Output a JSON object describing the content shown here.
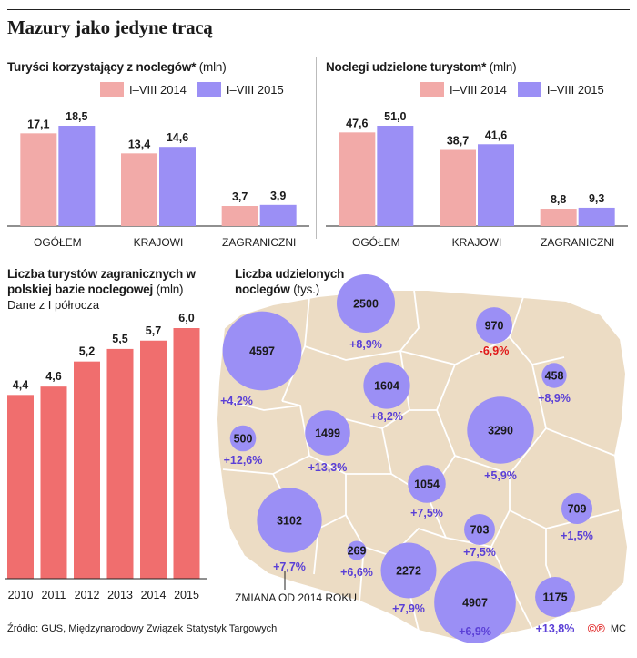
{
  "headline": "Mazury jako jedyne tracą",
  "colors": {
    "c2014": "#f2aaa8",
    "c2015": "#9b8ff5",
    "bar": "#f06e6e",
    "map": "#ecdcc4",
    "mapLine": "#ffffff",
    "bubble": "#9b8ff5",
    "pos": "#5a3fd6",
    "neg": "#e01818"
  },
  "chart_data": [
    {
      "type": "bar",
      "title": "Turyści korzystający z noclegów*",
      "unit": "(mln)",
      "categories": [
        "OGÓŁEM",
        "KRAJOWI",
        "ZAGRANICZNI"
      ],
      "series": [
        {
          "name": "I–VIII 2014",
          "values": [
            17.1,
            13.4,
            3.7
          ],
          "labels": [
            "17,1",
            "13,4",
            "3,7"
          ]
        },
        {
          "name": "I–VIII 2015",
          "values": [
            18.5,
            14.6,
            3.9
          ],
          "labels": [
            "18,5",
            "14,6",
            "3,9"
          ]
        }
      ]
    },
    {
      "type": "bar",
      "title": "Noclegi udzielone turystom*",
      "unit": "(mln)",
      "categories": [
        "OGÓŁEM",
        "KRAJOWI",
        "ZAGRANICZNI"
      ],
      "series": [
        {
          "name": "I–VIII 2014",
          "values": [
            47.6,
            38.7,
            8.8
          ],
          "labels": [
            "47,6",
            "38,7",
            "8,8"
          ]
        },
        {
          "name": "I–VIII 2015",
          "values": [
            51.0,
            41.6,
            9.3
          ],
          "labels": [
            "51,0",
            "41,6",
            "9,3"
          ]
        }
      ]
    },
    {
      "type": "bar",
      "title": "Liczba turystów zagranicznych w polskiej bazie noclegowej",
      "unit": "(mln)",
      "subtitle": "Dane z I półrocza",
      "categories": [
        "2010",
        "2011",
        "2012",
        "2013",
        "2014",
        "2015"
      ],
      "values": [
        4.4,
        4.6,
        5.2,
        5.5,
        5.7,
        6.0
      ],
      "labels": [
        "4,4",
        "4,6",
        "5,2",
        "5,5",
        "5,7",
        "6,0"
      ]
    },
    {
      "type": "map-bubble",
      "title": "Liczba udzielonych noclegów",
      "unit": "(tys.)",
      "note": "ZMIANA OD 2014 ROKU",
      "regions": [
        {
          "value": 4597,
          "change": "+4,2%",
          "negative": false
        },
        {
          "value": 2500,
          "change": "+8,9%",
          "negative": false
        },
        {
          "value": 970,
          "change": "-6,9%",
          "negative": true
        },
        {
          "value": 458,
          "change": "+8,9%",
          "negative": false
        },
        {
          "value": 1604,
          "change": "+8,2%",
          "negative": false
        },
        {
          "value": 500,
          "change": "+12,6%",
          "negative": false
        },
        {
          "value": 1499,
          "change": "+13,3%",
          "negative": false
        },
        {
          "value": 3290,
          "change": "+5,9%",
          "negative": false
        },
        {
          "value": 1054,
          "change": "+7,5%",
          "negative": false
        },
        {
          "value": 709,
          "change": "+1,5%",
          "negative": false
        },
        {
          "value": 3102,
          "change": "+7,7%",
          "negative": false
        },
        {
          "value": 703,
          "change": "+7,5%",
          "negative": false
        },
        {
          "value": 269,
          "change": "+6,6%",
          "negative": false
        },
        {
          "value": 2272,
          "change": "+7,9%",
          "negative": false
        },
        {
          "value": 4907,
          "change": "+6,9%",
          "negative": false
        },
        {
          "value": 1175,
          "change": "+13,8%",
          "negative": false
        }
      ]
    }
  ],
  "footer": "Źródło: GUS, Międzynarodowy Związek Statystyk Targowych",
  "brand": {
    "logo": "©℗",
    "initials": "MC"
  }
}
